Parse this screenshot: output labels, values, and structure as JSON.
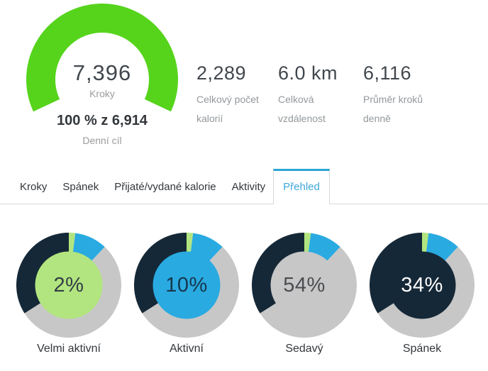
{
  "colors": {
    "gauge_green": "#56d41c",
    "light_green": "#b2e57f",
    "blue": "#29aae1",
    "gray": "#c7c7c7",
    "navy": "#152837",
    "tab_accent": "#2ca5d6",
    "tab_active_text": "#3ba7d9",
    "text_dark": "#33373b",
    "text_number": "#41474d",
    "text_muted": "#9b9b9b"
  },
  "gauge": {
    "value": "7,396",
    "label": "Kroky",
    "percent_of_goal": 100,
    "goal_text": "100 % z 6,914",
    "goal_label": "Denní cíl"
  },
  "stats": [
    {
      "value": "2,289",
      "label_line1": "Celkový počet",
      "label_line2": "kalorií"
    },
    {
      "value": "6.0 km",
      "label_line1": "Celková",
      "label_line2": "vzdálenost"
    },
    {
      "value": "6,116",
      "label_line1": "Průměr kroků",
      "label_line2": "denně"
    }
  ],
  "tabs": {
    "active": "Přehled",
    "items": [
      {
        "label": "Kroky"
      },
      {
        "label": "Spánek"
      },
      {
        "label": "Přijaté/vydané kalorie"
      },
      {
        "label": "Aktivity"
      },
      {
        "label": "Přehled"
      }
    ]
  },
  "chart_data": {
    "type": "pie",
    "subtype": "donut-group",
    "unit": "percent",
    "direction": "clockwise",
    "start_angle_deg": 0,
    "categories": [
      "Velmi aktivní",
      "Aktivní",
      "Sedavý",
      "Spánek"
    ],
    "values": [
      2,
      10,
      54,
      34
    ],
    "segment_colors": [
      "#b2e57f",
      "#29aae1",
      "#c7c7c7",
      "#152837"
    ],
    "charts": [
      {
        "label": "Velmi aktivní",
        "center_text": "2%",
        "highlight_index": 0,
        "center_text_color": "#323c46"
      },
      {
        "label": "Aktivní",
        "center_text": "10%",
        "highlight_index": 1,
        "center_text_color": "#17364c"
      },
      {
        "label": "Sedavý",
        "center_text": "54%",
        "highlight_index": 2,
        "center_text_color": "#494d51"
      },
      {
        "label": "Spánek",
        "center_text": "34%",
        "highlight_index": 3,
        "center_text_color": "#ffffff"
      }
    ]
  }
}
